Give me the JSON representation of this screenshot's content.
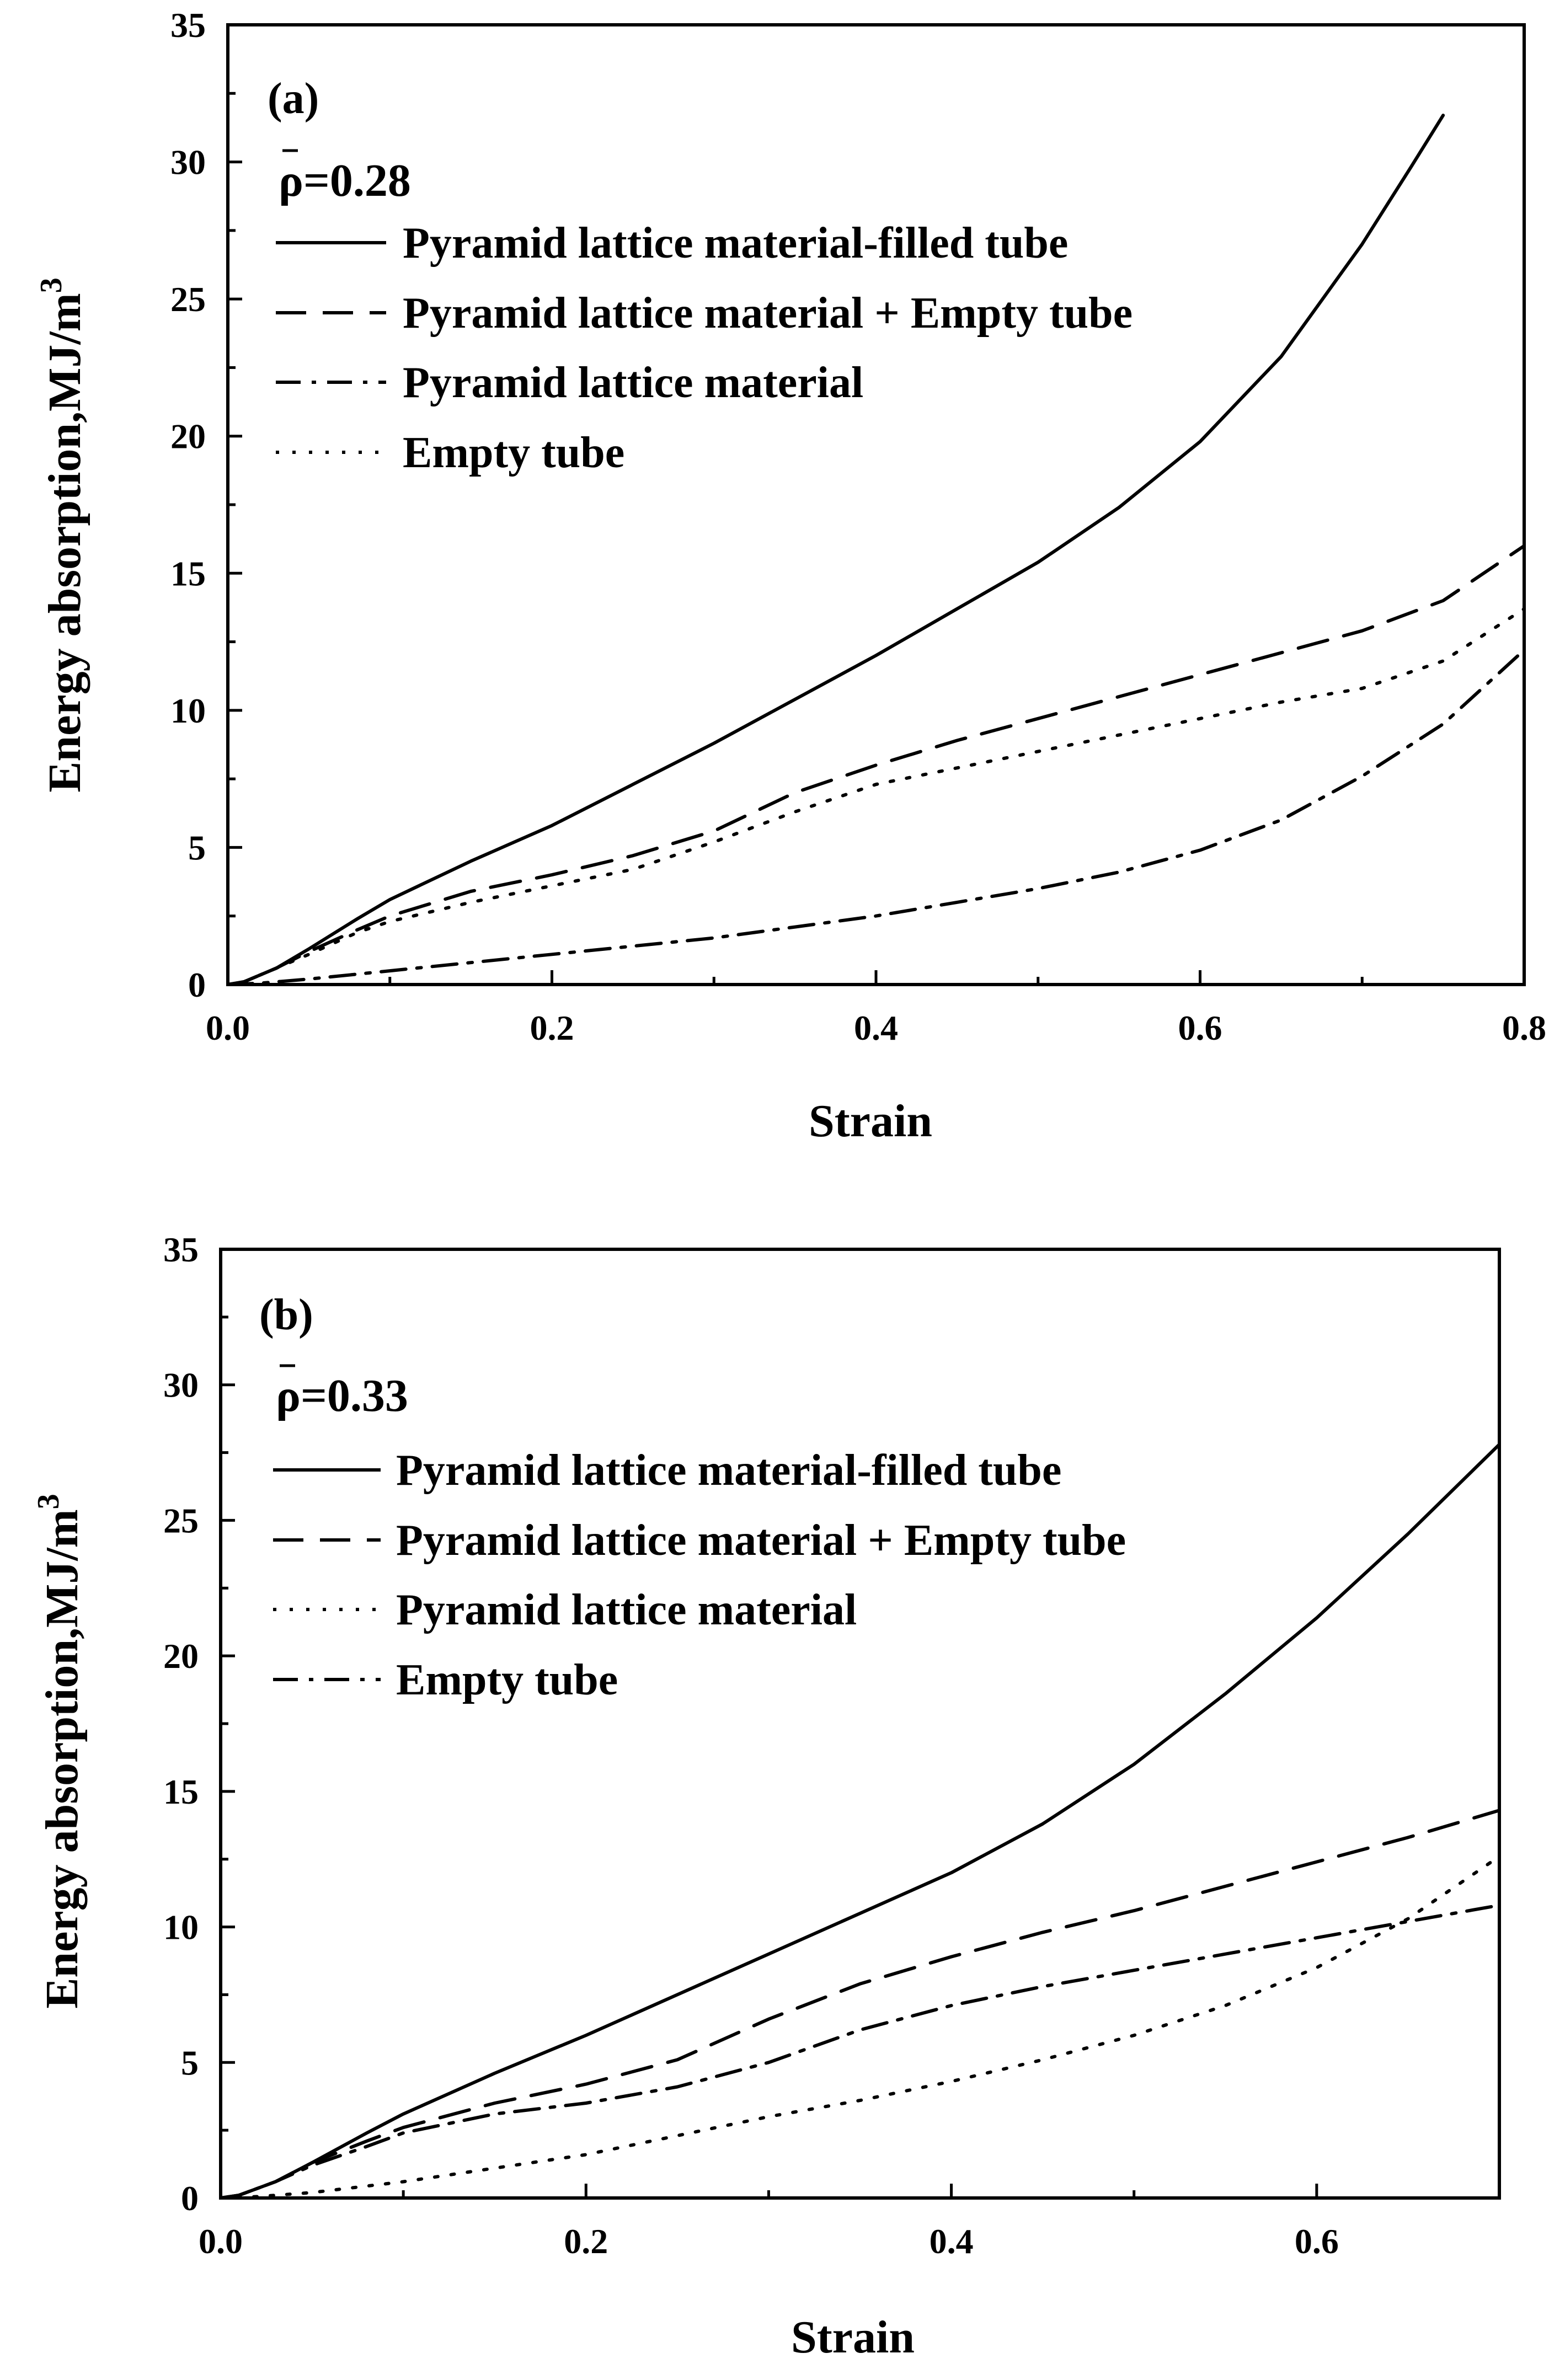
{
  "chart_data": [
    {
      "type": "line",
      "panel_label": "(a)",
      "density_symbol": "ρ",
      "density_value": "=0.28",
      "xlabel": "Strain",
      "ylabel": "Energy absorption,MJ/m",
      "ylabel_superscript": "3",
      "xlim": [
        0,
        0.8
      ],
      "ylim": [
        0,
        35
      ],
      "xticks": [
        0,
        0.2,
        0.4,
        0.6,
        0.8
      ],
      "xtick_labels": [
        "0.0",
        "0.2",
        "0.4",
        "0.6",
        "0.8"
      ],
      "yticks": [
        0,
        5,
        10,
        15,
        20,
        25,
        30,
        35
      ],
      "ytick_labels": [
        "0",
        "5",
        "10",
        "15",
        "20",
        "25",
        "30",
        "35"
      ],
      "legend_position": "top-left",
      "series": [
        {
          "name": "Pyramid lattice material-filled tube",
          "style": "solid",
          "x": [
            0,
            0.01,
            0.03,
            0.05,
            0.08,
            0.1,
            0.15,
            0.2,
            0.25,
            0.3,
            0.35,
            0.4,
            0.45,
            0.5,
            0.55,
            0.6,
            0.65,
            0.7,
            0.73,
            0.75
          ],
          "y": [
            0,
            0.1,
            0.6,
            1.3,
            2.4,
            3.1,
            4.5,
            5.8,
            7.3,
            8.8,
            10.4,
            12.0,
            13.7,
            15.4,
            17.4,
            19.8,
            22.9,
            27.0,
            29.8,
            31.7
          ]
        },
        {
          "name": "Pyramid lattice material + Empty tube",
          "style": "dashed",
          "x": [
            0,
            0.01,
            0.03,
            0.05,
            0.08,
            0.1,
            0.15,
            0.2,
            0.25,
            0.3,
            0.35,
            0.4,
            0.45,
            0.5,
            0.55,
            0.6,
            0.65,
            0.7,
            0.75,
            0.8
          ],
          "y": [
            0,
            0.1,
            0.6,
            1.2,
            2.0,
            2.5,
            3.4,
            4.0,
            4.7,
            5.6,
            7.0,
            8.0,
            8.9,
            9.7,
            10.5,
            11.3,
            12.1,
            12.9,
            14.0,
            16.0
          ]
        },
        {
          "name": "Pyramid lattice material",
          "style": "dashdot",
          "x": [
            0,
            0.02,
            0.05,
            0.1,
            0.15,
            0.2,
            0.25,
            0.3,
            0.35,
            0.4,
            0.45,
            0.5,
            0.55,
            0.6,
            0.65,
            0.7,
            0.75,
            0.8
          ],
          "y": [
            0,
            0.05,
            0.2,
            0.5,
            0.8,
            1.1,
            1.4,
            1.7,
            2.1,
            2.5,
            3.0,
            3.5,
            4.1,
            4.9,
            6.0,
            7.6,
            9.5,
            12.2
          ]
        },
        {
          "name": "Empty tube",
          "style": "dotted",
          "x": [
            0,
            0.01,
            0.03,
            0.05,
            0.08,
            0.1,
            0.15,
            0.2,
            0.25,
            0.3,
            0.35,
            0.4,
            0.45,
            0.5,
            0.55,
            0.6,
            0.65,
            0.7,
            0.75,
            0.8
          ],
          "y": [
            0,
            0.1,
            0.6,
            1.1,
            1.9,
            2.3,
            3.0,
            3.6,
            4.2,
            5.2,
            6.3,
            7.3,
            7.9,
            8.5,
            9.1,
            9.7,
            10.3,
            10.8,
            11.8,
            13.7
          ]
        }
      ]
    },
    {
      "type": "line",
      "panel_label": "(b)",
      "density_symbol": "ρ",
      "density_value": "=0.33",
      "xlabel": "Strain",
      "ylabel": "Energy absorption,MJ/m",
      "ylabel_superscript": "3",
      "xlim": [
        0,
        0.7
      ],
      "ylim": [
        0,
        35
      ],
      "xticks": [
        0,
        0.2,
        0.4,
        0.6
      ],
      "xtick_labels": [
        "0.0",
        "0.2",
        "0.4",
        "0.6"
      ],
      "yticks": [
        0,
        5,
        10,
        15,
        20,
        25,
        30,
        35
      ],
      "ytick_labels": [
        "0",
        "5",
        "10",
        "15",
        "20",
        "25",
        "30",
        "35"
      ],
      "legend_position": "top-left",
      "series": [
        {
          "name": "Pyramid lattice material-filled tube",
          "style": "solid",
          "x": [
            0,
            0.01,
            0.03,
            0.05,
            0.08,
            0.1,
            0.15,
            0.2,
            0.25,
            0.3,
            0.35,
            0.4,
            0.45,
            0.5,
            0.55,
            0.6,
            0.65,
            0.7
          ],
          "y": [
            0,
            0.1,
            0.6,
            1.3,
            2.4,
            3.1,
            4.6,
            6.0,
            7.5,
            9.0,
            10.5,
            12.0,
            13.8,
            16.0,
            18.6,
            21.4,
            24.5,
            27.8
          ]
        },
        {
          "name": "Pyramid lattice material + Empty tube",
          "style": "dashed",
          "x": [
            0,
            0.01,
            0.03,
            0.05,
            0.08,
            0.1,
            0.15,
            0.2,
            0.25,
            0.3,
            0.35,
            0.4,
            0.45,
            0.5,
            0.55,
            0.6,
            0.65,
            0.7
          ],
          "y": [
            0,
            0.1,
            0.6,
            1.3,
            2.1,
            2.6,
            3.5,
            4.2,
            5.1,
            6.6,
            7.9,
            8.9,
            9.8,
            10.6,
            11.5,
            12.4,
            13.3,
            14.3
          ]
        },
        {
          "name": "Pyramid lattice material",
          "style": "dotted",
          "x": [
            0,
            0.02,
            0.05,
            0.1,
            0.15,
            0.2,
            0.25,
            0.3,
            0.35,
            0.4,
            0.45,
            0.5,
            0.55,
            0.6,
            0.65,
            0.7
          ],
          "y": [
            0,
            0.05,
            0.2,
            0.6,
            1.1,
            1.6,
            2.3,
            3.0,
            3.6,
            4.3,
            5.1,
            6.0,
            7.1,
            8.5,
            10.3,
            12.6
          ]
        },
        {
          "name": "Empty tube",
          "style": "dashdot",
          "x": [
            0,
            0.01,
            0.03,
            0.05,
            0.08,
            0.1,
            0.15,
            0.2,
            0.25,
            0.3,
            0.35,
            0.4,
            0.45,
            0.5,
            0.55,
            0.6,
            0.65,
            0.7
          ],
          "y": [
            0,
            0.1,
            0.6,
            1.2,
            1.9,
            2.4,
            3.1,
            3.5,
            4.1,
            5.0,
            6.2,
            7.1,
            7.8,
            8.4,
            9.0,
            9.6,
            10.2,
            10.8
          ]
        }
      ]
    }
  ]
}
